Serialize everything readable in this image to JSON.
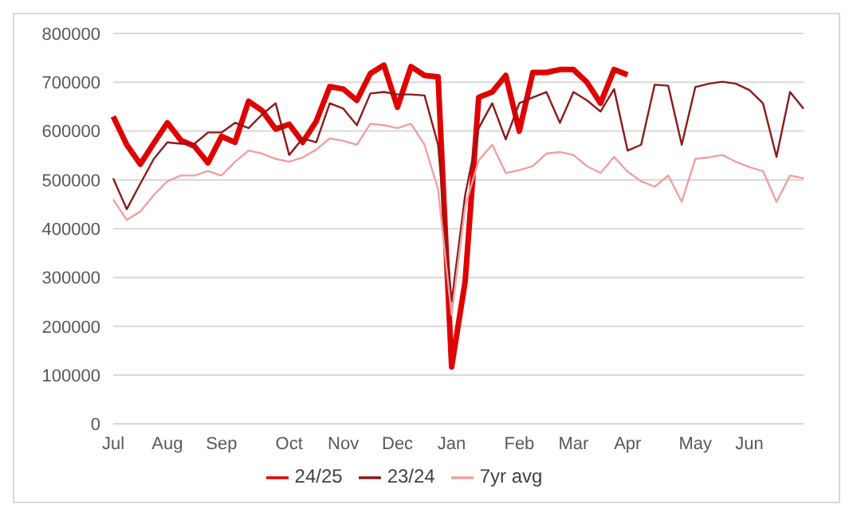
{
  "chart_data": {
    "type": "line",
    "categories": [
      "Jul",
      null,
      null,
      null,
      "Aug",
      null,
      null,
      null,
      "Sep",
      null,
      null,
      null,
      null,
      "Oct",
      null,
      null,
      null,
      "Nov",
      null,
      null,
      null,
      "Dec",
      null,
      null,
      null,
      "Jan",
      null,
      null,
      null,
      null,
      "Feb",
      null,
      null,
      null,
      "Mar",
      null,
      null,
      null,
      "Apr",
      null,
      null,
      null,
      null,
      "May",
      null,
      null,
      null,
      "Jun",
      null,
      null,
      null,
      null
    ],
    "series": [
      {
        "name": "24/25",
        "color": "#e00000",
        "values": [
          630000,
          572000,
          532000,
          575000,
          617000,
          581000,
          569000,
          535000,
          589000,
          577000,
          661000,
          642000,
          604000,
          614000,
          577000,
          620000,
          691000,
          686000,
          663000,
          718000,
          735000,
          649000,
          732000,
          714000,
          711000,
          117000,
          292000,
          669000,
          680000,
          714000,
          600000,
          720000,
          720000,
          726000,
          726000,
          700000,
          657000,
          726000,
          715000,
          null,
          null,
          null,
          null,
          null,
          null,
          null,
          null,
          null,
          null,
          null,
          null,
          null
        ]
      },
      {
        "name": "23/24",
        "color": "#8b1a1a",
        "values": [
          503000,
          440000,
          492000,
          543000,
          577000,
          574000,
          574000,
          597000,
          597000,
          617000,
          606000,
          634000,
          657000,
          551000,
          585000,
          577000,
          657000,
          646000,
          612000,
          677000,
          680000,
          675000,
          675000,
          673000,
          572000,
          250000,
          469000,
          606000,
          657000,
          583000,
          657000,
          669000,
          680000,
          617000,
          680000,
          663000,
          640000,
          686000,
          560000,
          572000,
          695000,
          693000,
          572000,
          690000,
          697000,
          701000,
          697000,
          684000,
          657000,
          547000,
          680000,
          646000
        ]
      },
      {
        "name": "7yr avg",
        "color": "#f0a0a0",
        "values": [
          460000,
          418000,
          435000,
          469000,
          497000,
          509000,
          509000,
          518000,
          509000,
          537000,
          560000,
          554000,
          543000,
          537000,
          546000,
          562000,
          585000,
          580000,
          572000,
          615000,
          612000,
          606000,
          615000,
          572000,
          480000,
          223000,
          446000,
          540000,
          572000,
          514000,
          520000,
          528000,
          554000,
          557000,
          551000,
          528000,
          514000,
          547000,
          517000,
          497000,
          486000,
          509000,
          455000,
          543000,
          546000,
          551000,
          537000,
          526000,
          518000,
          455000,
          509000,
          503000
        ]
      }
    ],
    "ylim": [
      0,
      800000
    ],
    "yticks": [
      0,
      100000,
      200000,
      300000,
      400000,
      500000,
      600000,
      700000,
      800000
    ],
    "grid": "y",
    "legend": "bottom",
    "marker": "none",
    "line_style": "solid"
  }
}
